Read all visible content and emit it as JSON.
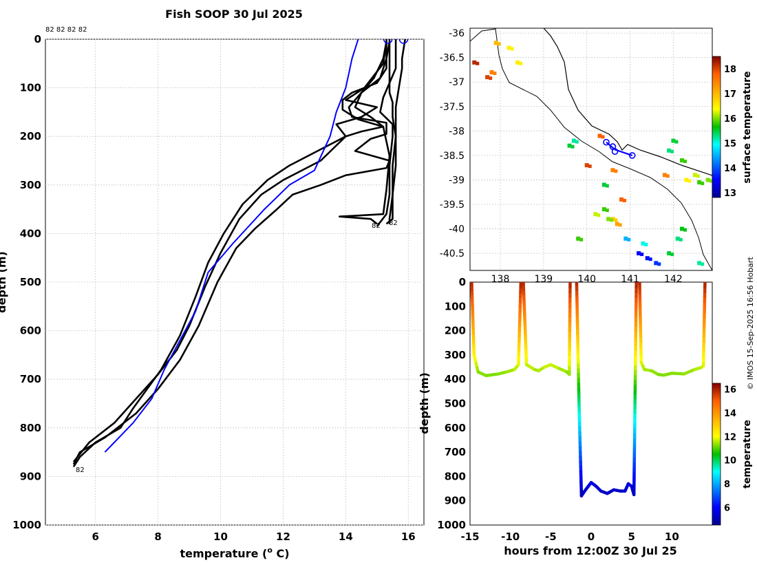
{
  "figure": {
    "title": "Fish SOOP 30 Jul 2025",
    "credit": "© IMOS 15-Sep-2025 16:56 Hobart",
    "profile_tag_top": "82 82 82 82",
    "profile_end_tag": "82"
  },
  "chart_data": [
    {
      "id": "profiles",
      "type": "line",
      "xlabel": "temperature (",
      "xlabel_sup": "o",
      "xlabel_end": " C)",
      "ylabel": "depth (m)",
      "xlim": [
        4.4,
        16.5
      ],
      "ylim": [
        0,
        1000
      ],
      "y_reversed": true,
      "xticks": [
        6,
        8,
        10,
        12,
        14,
        16
      ],
      "yticks": [
        0,
        100,
        200,
        300,
        400,
        500,
        600,
        700,
        800,
        900,
        1000
      ],
      "grid": true,
      "series": [
        {
          "name": "profile-1",
          "color": "#000000",
          "points": [
            [
              15.4,
              0
            ],
            [
              15.4,
              50
            ],
            [
              15.4,
              110
            ],
            [
              15.5,
              130
            ],
            [
              15.5,
              160
            ],
            [
              15.6,
              200
            ],
            [
              15.5,
              260
            ],
            [
              15.5,
              320
            ],
            [
              15.4,
              370
            ],
            [
              15.4,
              380
            ]
          ]
        },
        {
          "name": "profile-2",
          "color": "#000000",
          "points": [
            [
              15.9,
              0
            ],
            [
              15.8,
              40
            ],
            [
              15.8,
              60
            ],
            [
              15.7,
              100
            ],
            [
              15.6,
              140
            ],
            [
              15.6,
              170
            ],
            [
              15.6,
              210
            ],
            [
              15.6,
              260
            ],
            [
              15.5,
              320
            ],
            [
              15.5,
              370
            ],
            [
              15.3,
              380
            ]
          ]
        },
        {
          "name": "profile-3",
          "color": "#000000",
          "points": [
            [
              15.3,
              0
            ],
            [
              15.3,
              60
            ],
            [
              15.0,
              90
            ],
            [
              14.2,
              110
            ],
            [
              13.9,
              125
            ],
            [
              13.9,
              145
            ],
            [
              14.4,
              165
            ],
            [
              15.2,
              180
            ],
            [
              15.4,
              240
            ],
            [
              15.3,
              310
            ],
            [
              15.2,
              360
            ],
            [
              13.8,
              365
            ],
            [
              14.8,
              370
            ],
            [
              15.0,
              380
            ]
          ]
        },
        {
          "name": "profile-4",
          "color": "#000000",
          "points": [
            [
              15.6,
              0
            ],
            [
              15.6,
              30
            ],
            [
              15.6,
              60
            ],
            [
              15.4,
              90
            ],
            [
              15.2,
              120
            ],
            [
              15.1,
              150
            ],
            [
              15.5,
              175
            ],
            [
              15.5,
              200
            ],
            [
              15.4,
              260
            ],
            [
              15.4,
              320
            ],
            [
              15.3,
              360
            ],
            [
              15.0,
              385
            ]
          ]
        },
        {
          "name": "profile-5",
          "color": "#000000",
          "points": [
            [
              15.3,
              5
            ],
            [
              15.2,
              40
            ],
            [
              14.9,
              80
            ],
            [
              14.5,
              110
            ],
            [
              14.1,
              140
            ],
            [
              14.2,
              160
            ],
            [
              15.3,
              172
            ],
            [
              15.3,
              195
            ],
            [
              14.8,
              205
            ],
            [
              14.3,
              230
            ],
            [
              15.4,
              250
            ],
            [
              15.3,
              265
            ],
            [
              14.0,
              280
            ],
            [
              13.2,
              300
            ],
            [
              12.3,
              320
            ],
            [
              11.8,
              350
            ],
            [
              11.1,
              390
            ],
            [
              10.5,
              430
            ],
            [
              9.9,
              500
            ],
            [
              9.3,
              590
            ],
            [
              8.7,
              660
            ],
            [
              8.0,
              720
            ],
            [
              7.3,
              770
            ],
            [
              6.3,
              820
            ],
            [
              5.5,
              850
            ],
            [
              5.3,
              875
            ]
          ]
        },
        {
          "name": "profile-6",
          "color": "#000000",
          "points": [
            [
              15.4,
              5
            ],
            [
              15.3,
              40
            ],
            [
              15.1,
              80
            ],
            [
              14.5,
              110
            ],
            [
              14.3,
              140
            ],
            [
              14.8,
              160
            ],
            [
              15.2,
              180
            ],
            [
              14.5,
              190
            ],
            [
              14.0,
              200
            ],
            [
              13.2,
              250
            ],
            [
              12.6,
              270
            ],
            [
              12.0,
              290
            ],
            [
              11.3,
              320
            ],
            [
              10.6,
              370
            ],
            [
              10.0,
              440
            ],
            [
              9.5,
              510
            ],
            [
              9.0,
              590
            ],
            [
              8.6,
              640
            ],
            [
              8.0,
              690
            ],
            [
              7.3,
              740
            ],
            [
              6.6,
              790
            ],
            [
              5.8,
              830
            ],
            [
              5.3,
              870
            ]
          ]
        },
        {
          "name": "profile-7",
          "color": "#000000",
          "points": [
            [
              15.3,
              5
            ],
            [
              15.2,
              50
            ],
            [
              14.6,
              100
            ],
            [
              14.0,
              125
            ],
            [
              15.0,
              140
            ],
            [
              14.5,
              160
            ],
            [
              13.7,
              175
            ],
            [
              14.0,
              200
            ],
            [
              13.1,
              230
            ],
            [
              12.2,
              260
            ],
            [
              11.5,
              290
            ],
            [
              10.7,
              340
            ],
            [
              10.1,
              400
            ],
            [
              9.6,
              460
            ],
            [
              9.2,
              530
            ],
            [
              8.7,
              610
            ],
            [
              8.1,
              680
            ],
            [
              7.2,
              760
            ],
            [
              6.8,
              800
            ],
            [
              6.0,
              830
            ],
            [
              5.5,
              860
            ],
            [
              5.3,
              880
            ]
          ]
        },
        {
          "name": "model",
          "color": "#0000ff",
          "points": [
            [
              14.4,
              0
            ],
            [
              14.2,
              40
            ],
            [
              14.0,
              100
            ],
            [
              13.7,
              150
            ],
            [
              13.5,
              200
            ],
            [
              13.0,
              270
            ],
            [
              12.2,
              300
            ],
            [
              11.4,
              350
            ],
            [
              10.4,
              420
            ],
            [
              9.6,
              480
            ],
            [
              9.2,
              560
            ],
            [
              8.7,
              620
            ],
            [
              8.2,
              680
            ],
            [
              7.8,
              740
            ],
            [
              7.2,
              790
            ],
            [
              6.6,
              830
            ],
            [
              6.3,
              850
            ]
          ]
        }
      ]
    },
    {
      "id": "map",
      "type": "scatter",
      "ylabel": "",
      "xlim": [
        137.3,
        142.9
      ],
      "ylim": [
        -40.85,
        -35.9
      ],
      "xticks": [
        138,
        139,
        140,
        141,
        142
      ],
      "xtick_labels": [
        "138",
        "139",
        "140",
        "141",
        "142"
      ],
      "yticks": [
        -36,
        -36.5,
        -37,
        -37.5,
        -38,
        -38.5,
        -39,
        -39.5,
        -40,
        -40.5
      ],
      "grid": true,
      "track": [
        [
          140.45,
          -38.23
        ],
        [
          140.65,
          -38.38
        ],
        [
          141.05,
          -38.5
        ]
      ],
      "stations": [
        [
          140.45,
          -38.23
        ],
        [
          140.6,
          -38.32
        ],
        [
          140.65,
          -38.42
        ],
        [
          141.05,
          -38.5
        ]
      ],
      "sst": [
        [
          137.9,
          -36.2,
          17
        ],
        [
          138.2,
          -36.3,
          16.5
        ],
        [
          137.7,
          -36.9,
          18
        ],
        [
          137.8,
          -36.8,
          17.5
        ],
        [
          138.4,
          -36.6,
          16.5
        ],
        [
          137.4,
          -36.6,
          18.2
        ],
        [
          139.6,
          -38.3,
          15.5
        ],
        [
          139.7,
          -38.2,
          15.2
        ],
        [
          140.3,
          -38.1,
          17.8
        ],
        [
          140.0,
          -38.7,
          18
        ],
        [
          140.6,
          -38.8,
          17.5
        ],
        [
          141.9,
          -38.4,
          15.3
        ],
        [
          142.0,
          -38.2,
          15.5
        ],
        [
          142.2,
          -38.6,
          15.8
        ],
        [
          142.5,
          -38.9,
          16.2
        ],
        [
          142.8,
          -39.0,
          16.0
        ],
        [
          142.6,
          -39.05,
          15.8
        ],
        [
          142.3,
          -39.0,
          16.5
        ],
        [
          141.8,
          -38.9,
          17.5
        ],
        [
          140.4,
          -39.1,
          15.5
        ],
        [
          140.2,
          -39.7,
          16.2
        ],
        [
          140.4,
          -39.6,
          15.8
        ],
        [
          140.6,
          -39.8,
          16.8
        ],
        [
          140.7,
          -39.9,
          17.2
        ],
        [
          140.5,
          -39.8,
          16.0
        ],
        [
          140.9,
          -40.2,
          14.5
        ],
        [
          141.3,
          -40.3,
          15
        ],
        [
          141.2,
          -40.5,
          13.5
        ],
        [
          141.4,
          -40.6,
          13.6
        ],
        [
          141.6,
          -40.7,
          13.8
        ],
        [
          141.9,
          -40.5,
          15.5
        ],
        [
          142.1,
          -40.2,
          15.3
        ],
        [
          142.2,
          -40.0,
          15.6
        ],
        [
          142.6,
          -40.7,
          15.2
        ],
        [
          139.8,
          -40.2,
          15.8
        ],
        [
          140.8,
          -39.4,
          17.8
        ]
      ],
      "colorbar": {
        "label": "surface temperature",
        "min": 12.8,
        "max": 18.5,
        "ticks": [
          13,
          14,
          15,
          16,
          17,
          18
        ]
      }
    },
    {
      "id": "section",
      "type": "line",
      "xlabel": "hours from 12:00Z 30 Jul 25",
      "ylabel": "depth (m)",
      "xlim": [
        -15,
        15
      ],
      "ylim": [
        0,
        1000
      ],
      "y_reversed": true,
      "xticks": [
        -15,
        -10,
        -5,
        0,
        5,
        10
      ],
      "yticks": [
        0,
        100,
        200,
        300,
        400,
        500,
        600,
        700,
        800,
        900,
        1000
      ],
      "segments": [
        {
          "points": [
            [
              -14.8,
              0
            ],
            [
              -14.5,
              300
            ],
            [
              -14.0,
              370
            ],
            [
              -13.0,
              385
            ],
            [
              -11.5,
              378
            ],
            [
              -10.5,
              370
            ],
            [
              -9.5,
              360
            ],
            [
              -9.0,
              340
            ],
            [
              -8.7,
              0
            ]
          ]
        },
        {
          "points": [
            [
              -8.4,
              0
            ],
            [
              -8.0,
              340
            ],
            [
              -7.0,
              360
            ],
            [
              -6.5,
              365
            ],
            [
              -5.8,
              350
            ],
            [
              -5.0,
              340
            ],
            [
              -4.0,
              355
            ],
            [
              -3.0,
              370
            ],
            [
              -2.7,
              380
            ],
            [
              -2.6,
              0
            ]
          ]
        },
        {
          "points": [
            [
              -1.8,
              0
            ],
            [
              -1.5,
              500
            ],
            [
              -1.2,
              880
            ],
            [
              -0.8,
              860
            ],
            [
              0,
              825
            ],
            [
              0.6,
              840
            ],
            [
              1.2,
              860
            ],
            [
              2.0,
              870
            ],
            [
              2.8,
              855
            ],
            [
              3.6,
              860
            ],
            [
              4.2,
              860
            ],
            [
              4.6,
              830
            ],
            [
              5.0,
              840
            ],
            [
              5.3,
              875
            ],
            [
              5.6,
              0
            ]
          ]
        },
        {
          "points": [
            [
              6.0,
              0
            ],
            [
              6.2,
              330
            ],
            [
              6.6,
              360
            ],
            [
              7.5,
              365
            ],
            [
              8.3,
              380
            ],
            [
              9.0,
              383
            ],
            [
              10.0,
              375
            ],
            [
              11.5,
              378
            ],
            [
              12.8,
              360
            ],
            [
              13.6,
              352
            ],
            [
              13.9,
              345
            ],
            [
              14.1,
              0
            ]
          ]
        }
      ],
      "colorbar": {
        "label": "temperature",
        "min": 4.5,
        "max": 16.5,
        "ticks": [
          6,
          8,
          10,
          12,
          14,
          16
        ]
      }
    }
  ]
}
